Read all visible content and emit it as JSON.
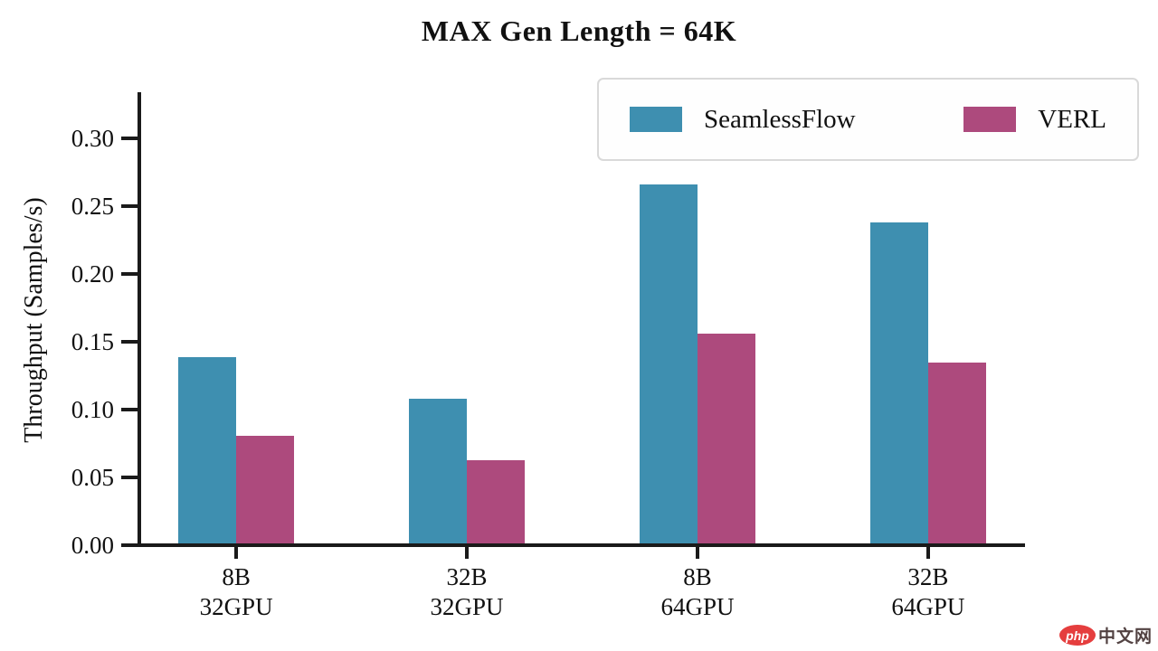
{
  "watermark": {
    "badge": "php",
    "text": "中文网",
    "badge_color": "#e53e3e",
    "text_color": "#524242"
  },
  "chart_data": {
    "type": "bar",
    "title": "MAX Gen Length = 64K",
    "xlabel": "",
    "ylabel": "Throughput (Samples/s)",
    "categories": [
      "8B\n32GPU",
      "32B\n32GPU",
      "8B\n64GPU",
      "32B\n64GPU"
    ],
    "series": [
      {
        "name": "SeamlessFlow",
        "color": "#3e8fb0",
        "values": [
          0.139,
          0.108,
          0.266,
          0.238
        ]
      },
      {
        "name": "VERL",
        "color": "#ad4a7d",
        "values": [
          0.081,
          0.063,
          0.156,
          0.135
        ]
      }
    ],
    "yticks": [
      0.0,
      0.05,
      0.1,
      0.15,
      0.2,
      0.25,
      0.3
    ],
    "ylim": [
      0,
      0.333
    ],
    "grid": false,
    "legend_position": "upper right",
    "axis_color": "#1a1a1a"
  }
}
